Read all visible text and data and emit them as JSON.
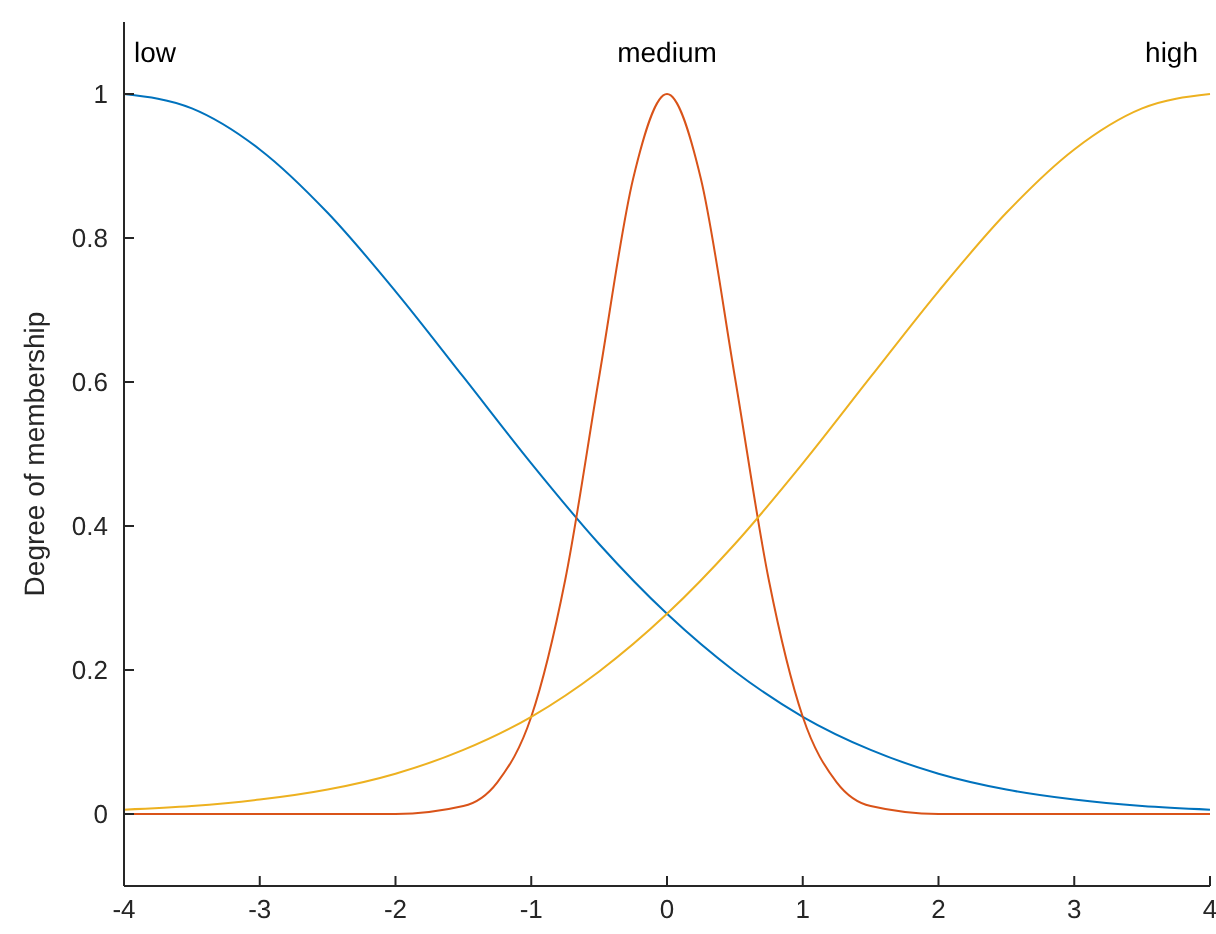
{
  "chart_data": {
    "type": "line",
    "ylabel": "Degree of membership",
    "xlim": [
      -4,
      4
    ],
    "ylim": [
      -0.1,
      1.1
    ],
    "xticks": [
      -4,
      -3,
      -2,
      -1,
      0,
      1,
      2,
      3,
      4
    ],
    "yticks": [
      0,
      0.2,
      0.4,
      0.6,
      0.8,
      1
    ],
    "grid": false,
    "series": [
      {
        "color": "#0072bd",
        "x": [
          -4,
          -3.5,
          -3,
          -2.5,
          -2,
          -1.5,
          -1,
          -0.5,
          0,
          0.5,
          1,
          1.5,
          2,
          2.5,
          3,
          3.5,
          4
        ],
        "values": [
          1,
          0.98,
          0.923,
          0.835,
          0.726,
          0.607,
          0.487,
          0.375,
          0.278,
          0.198,
          0.135,
          0.089,
          0.056,
          0.034,
          0.02,
          0.011,
          0.006
        ]
      },
      {
        "color": "#d95319",
        "x": [
          -4,
          -3,
          -2,
          -1.5,
          -1.25,
          -1,
          -0.75,
          -0.5,
          -0.25,
          0,
          0.25,
          0.5,
          0.75,
          1,
          1.25,
          1.5,
          2,
          3,
          4
        ],
        "values": [
          0,
          0,
          0,
          0.011,
          0.044,
          0.135,
          0.325,
          0.607,
          0.882,
          1,
          0.882,
          0.607,
          0.325,
          0.135,
          0.044,
          0.011,
          0,
          0,
          0
        ]
      },
      {
        "color": "#edb120",
        "x": [
          -4,
          -3.5,
          -3,
          -2.5,
          -2,
          -1.5,
          -1,
          -0.5,
          0,
          0.5,
          1,
          1.5,
          2,
          2.5,
          3,
          3.5,
          4
        ],
        "values": [
          0.006,
          0.011,
          0.02,
          0.034,
          0.056,
          0.089,
          0.135,
          0.198,
          0.278,
          0.375,
          0.487,
          0.607,
          0.726,
          0.835,
          0.923,
          0.98,
          1
        ]
      }
    ],
    "annotations": [
      "low",
      "medium",
      "high"
    ]
  }
}
